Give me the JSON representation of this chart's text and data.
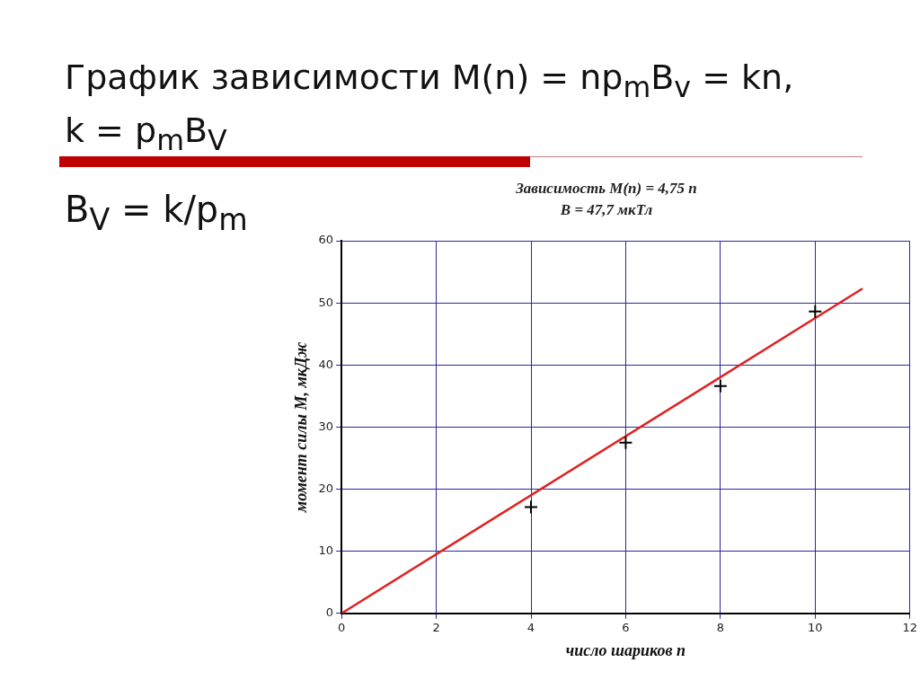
{
  "chart_data": {
    "type": "scatter",
    "title": "График зависимости M(n) = np$_{m}$B$_{v}$ = kn,\nk = p$_{m}$B$_{V}$",
    "subtitle": "Зависимость M(n) = 4,75 n\nB = 47,7 мкТл",
    "annotations": [
      "B$_{V}$ = k/p$_{m}$"
    ],
    "xlabel": "число шариков n",
    "ylabel": "момент силы M, мкДж",
    "series": [
      {
        "type": "scatter",
        "color": "#000000",
        "marker": "cross",
        "x": [
          4,
          6,
          8,
          10
        ],
        "values": [
          17.1,
          27.5,
          36.6,
          48.6
        ]
      },
      {
        "type": "line",
        "color": "#e02020",
        "marker": "none",
        "line_style": "solid",
        "x": [
          0,
          11
        ],
        "values": [
          0,
          52.3
        ]
      }
    ],
    "xlim": [
      0,
      12
    ],
    "xticks": [
      0,
      2,
      4,
      6,
      8,
      10,
      12
    ],
    "ylim": [
      0,
      60
    ],
    "yticks": [
      0,
      10,
      20,
      30,
      40,
      50,
      60
    ],
    "grid": true,
    "legend": false
  }
}
